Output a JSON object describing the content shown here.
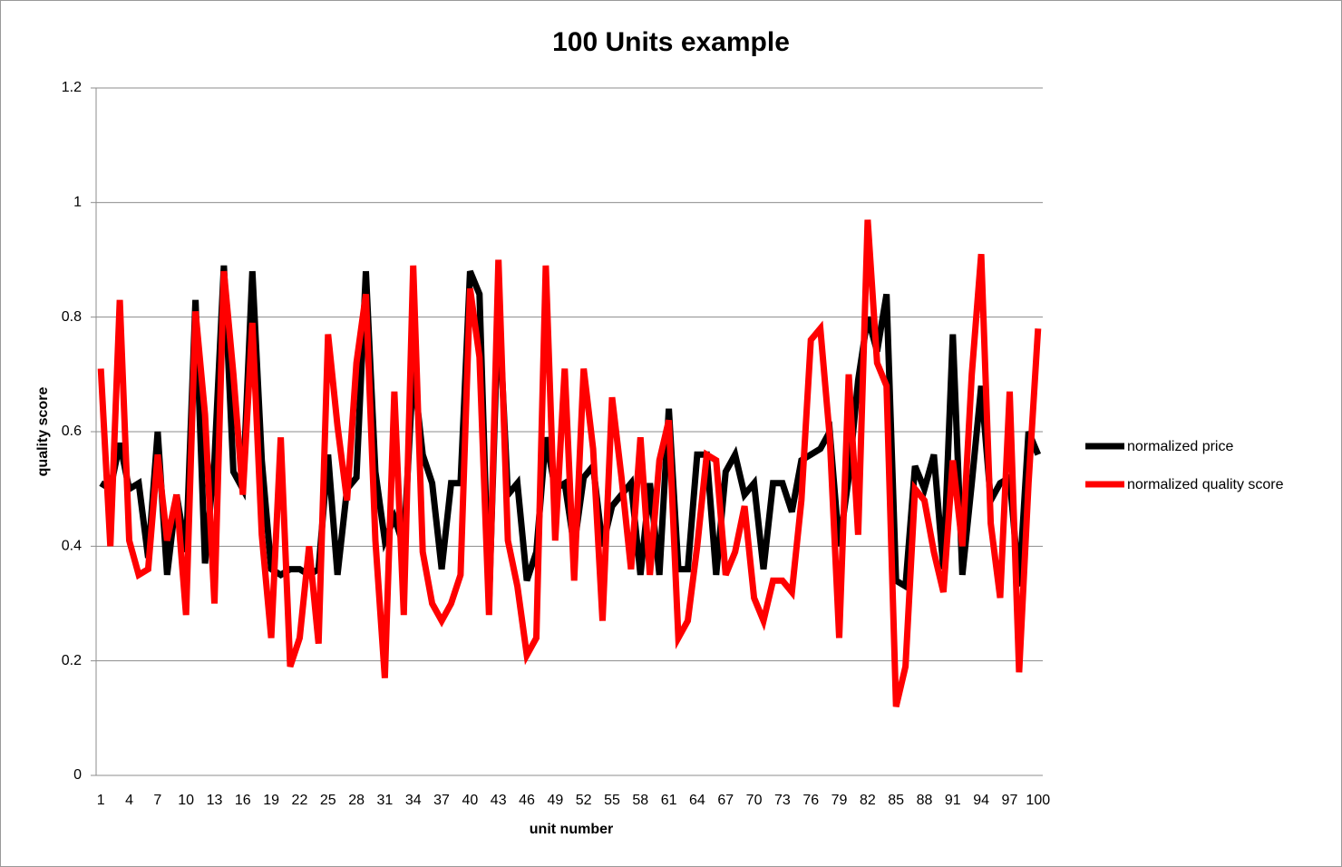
{
  "chart_data": {
    "type": "line",
    "title": "100 Units example",
    "xlabel": "unit number",
    "ylabel": "quality score",
    "categories": [
      "1",
      null,
      null,
      "4",
      null,
      null,
      "7",
      null,
      null,
      "10",
      null,
      null,
      "13",
      null,
      null,
      "16",
      null,
      null,
      "19",
      null,
      null,
      "22",
      null,
      null,
      "25",
      null,
      null,
      "28",
      null,
      null,
      "31",
      null,
      null,
      "34",
      null,
      null,
      "37",
      null,
      null,
      "40",
      null,
      null,
      "43",
      null,
      null,
      "46",
      null,
      null,
      "49",
      null,
      null,
      "52",
      null,
      null,
      "55",
      null,
      null,
      "58",
      null,
      null,
      "61",
      null,
      null,
      "64",
      null,
      null,
      "67",
      null,
      null,
      "70",
      null,
      null,
      "73",
      null,
      null,
      "76",
      null,
      null,
      "79",
      null,
      null,
      "82",
      null,
      null,
      "85",
      null,
      null,
      "88",
      null,
      null,
      "91",
      null,
      null,
      "94",
      null,
      null,
      "97",
      null,
      null,
      "100"
    ],
    "series": [
      {
        "name": "normalized price",
        "color": "#000000",
        "values": [
          0.51,
          0.5,
          0.58,
          0.5,
          0.51,
          0.38,
          0.6,
          0.35,
          0.49,
          0.39,
          0.83,
          0.37,
          0.55,
          0.89,
          0.53,
          0.5,
          0.88,
          0.55,
          0.36,
          0.35,
          0.36,
          0.36,
          0.35,
          0.36,
          0.56,
          0.35,
          0.5,
          0.52,
          0.88,
          0.53,
          0.41,
          0.45,
          0.4,
          0.71,
          0.56,
          0.51,
          0.36,
          0.51,
          0.51,
          0.88,
          0.84,
          0.3,
          0.83,
          0.49,
          0.51,
          0.34,
          0.39,
          0.59,
          0.5,
          0.51,
          0.4,
          0.52,
          0.54,
          0.4,
          0.47,
          0.49,
          0.51,
          0.35,
          0.51,
          0.35,
          0.64,
          0.36,
          0.36,
          0.56,
          0.56,
          0.35,
          0.53,
          0.56,
          0.49,
          0.51,
          0.36,
          0.51,
          0.51,
          0.46,
          0.55,
          0.56,
          0.57,
          0.6,
          0.4,
          0.52,
          0.69,
          0.8,
          0.74,
          0.84,
          0.34,
          0.33,
          0.54,
          0.5,
          0.56,
          0.36,
          0.77,
          0.35,
          0.51,
          0.68,
          0.48,
          0.51,
          0.52,
          0.33,
          0.6,
          0.56
        ]
      },
      {
        "name": "normalized quality score",
        "color": "#ff0000",
        "values": [
          0.71,
          0.4,
          0.83,
          0.41,
          0.35,
          0.36,
          0.56,
          0.41,
          0.49,
          0.28,
          0.81,
          0.63,
          0.3,
          0.88,
          0.7,
          0.49,
          0.79,
          0.42,
          0.24,
          0.59,
          0.19,
          0.24,
          0.4,
          0.23,
          0.77,
          0.61,
          0.48,
          0.72,
          0.84,
          0.41,
          0.17,
          0.67,
          0.28,
          0.89,
          0.39,
          0.3,
          0.27,
          0.3,
          0.35,
          0.85,
          0.73,
          0.28,
          0.9,
          0.41,
          0.33,
          0.21,
          0.24,
          0.89,
          0.41,
          0.71,
          0.34,
          0.71,
          0.57,
          0.27,
          0.66,
          0.52,
          0.36,
          0.59,
          0.35,
          0.55,
          0.62,
          0.24,
          0.27,
          0.4,
          0.56,
          0.55,
          0.35,
          0.39,
          0.47,
          0.31,
          0.27,
          0.34,
          0.34,
          0.32,
          0.48,
          0.76,
          0.78,
          0.59,
          0.24,
          0.7,
          0.42,
          0.97,
          0.72,
          0.68,
          0.12,
          0.19,
          0.5,
          0.48,
          0.39,
          0.32,
          0.55,
          0.4,
          0.7,
          0.91,
          0.44,
          0.31,
          0.67,
          0.18,
          0.51,
          0.78
        ]
      }
    ],
    "ylim": [
      0,
      1.2
    ],
    "yticks": [
      0,
      0.2,
      0.4,
      0.6,
      0.8,
      1,
      1.2
    ],
    "grid": true,
    "legend": "right"
  }
}
